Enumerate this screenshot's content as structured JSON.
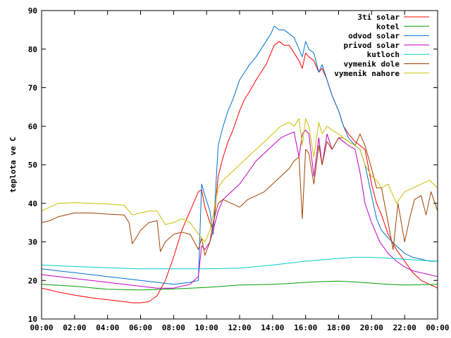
{
  "chart_data": {
    "type": "line",
    "ylabel": "teplota ve C",
    "xlabel": "",
    "title": "",
    "ylim": [
      10,
      90
    ],
    "xlim": [
      0,
      24
    ],
    "yticks": [
      10,
      20,
      30,
      40,
      50,
      60,
      70,
      80,
      90
    ],
    "xticks": [
      "00:00",
      "02:00",
      "04:00",
      "06:00",
      "08:00",
      "10:00",
      "12:00",
      "14:00",
      "16:00",
      "18:00",
      "20:00",
      "22:00",
      "00:00"
    ],
    "grid": false,
    "legend_position": "top-right",
    "series": [
      {
        "name": "3ti solar",
        "color": "#ff0000",
        "x": [
          0,
          0.5,
          1,
          2,
          3,
          4,
          5,
          5.5,
          6,
          6.5,
          7,
          7.5,
          8,
          8.5,
          9,
          9.5,
          9.7,
          9.9,
          10.2,
          10.4,
          10.7,
          11,
          11.3,
          11.6,
          12,
          12.3,
          12.6,
          13,
          13.3,
          13.6,
          13.9,
          14.1,
          14.4,
          14.7,
          15,
          15.3,
          15.6,
          15.8,
          16,
          16.2,
          16.5,
          16.8,
          17,
          17.3,
          17.6,
          18,
          18.3,
          18.6,
          19,
          19.3,
          19.6,
          20,
          20.3,
          20.6,
          21,
          21.5,
          22,
          22.5,
          23,
          23.5,
          24
        ],
        "y": [
          18,
          17.5,
          17,
          16.2,
          15.5,
          15,
          14.5,
          14.2,
          14.2,
          14.5,
          16,
          20,
          26,
          33,
          38,
          43,
          43.5,
          39,
          35,
          33,
          47,
          52,
          56,
          59,
          64,
          67,
          69,
          72,
          74,
          76,
          79,
          81,
          82,
          81,
          81,
          79,
          77,
          75,
          79,
          78,
          77,
          74,
          75,
          72,
          68,
          64,
          60,
          58,
          56,
          55,
          54,
          45,
          40,
          37,
          32,
          28,
          25,
          22,
          20,
          19,
          18
        ]
      },
      {
        "name": "kotel",
        "color": "#00a000",
        "x": [
          0,
          2,
          4,
          6,
          8,
          9,
          10,
          11,
          12,
          13,
          14,
          15,
          16,
          17,
          18,
          19,
          20,
          21,
          22,
          23,
          24
        ],
        "y": [
          19,
          18.5,
          17.7,
          17.5,
          17.8,
          18,
          18.2,
          18.5,
          18.8,
          18.9,
          19,
          19.2,
          19.5,
          19.7,
          19.8,
          19.6,
          19.3,
          19,
          18.8,
          18.9,
          19
        ]
      },
      {
        "name": "odvod solar",
        "color": "#0070cc",
        "x": [
          0,
          1,
          2,
          3,
          4,
          5,
          6,
          7,
          8,
          9,
          9.5,
          9.7,
          9.9,
          10.2,
          10.4,
          10.7,
          11,
          11.3,
          11.6,
          12,
          12.3,
          12.6,
          13,
          13.3,
          13.6,
          13.9,
          14.1,
          14.4,
          14.7,
          15,
          15.3,
          15.6,
          15.8,
          16,
          16.2,
          16.5,
          16.8,
          17,
          17.3,
          17.6,
          18,
          18.3,
          18.6,
          19,
          19.3,
          19.6,
          20,
          20.3,
          20.6,
          21,
          21.5,
          22,
          22.5,
          23,
          23.5,
          24
        ],
        "y": [
          23,
          22.5,
          22,
          21.5,
          21,
          20.5,
          20,
          19.5,
          19,
          19.5,
          20,
          45,
          42,
          38,
          32,
          55,
          60,
          64,
          67,
          72,
          74,
          76,
          78,
          80,
          82,
          84,
          86,
          85,
          85,
          84,
          83,
          80,
          78,
          82,
          80,
          79,
          74,
          76,
          72,
          68,
          64,
          60,
          57,
          55,
          54,
          50,
          42,
          36,
          33,
          31,
          29,
          27,
          26,
          25.5,
          25,
          25
        ]
      },
      {
        "name": "privod solar",
        "color": "#c000c0",
        "x": [
          0,
          1,
          2,
          3,
          4,
          5,
          6,
          7,
          8,
          9,
          9.5,
          9.7,
          9.9,
          10.2,
          10.4,
          10.7,
          11,
          11.5,
          12,
          12.5,
          13,
          13.5,
          14,
          14.5,
          15,
          15.3,
          15.6,
          15.8,
          16,
          16.2,
          16.5,
          16.8,
          17,
          17.3,
          17.6,
          18,
          18.3,
          18.6,
          19,
          19.3,
          19.6,
          20,
          20.5,
          21,
          21.5,
          22,
          22.5,
          23,
          23.5,
          24
        ],
        "y": [
          21.5,
          21,
          20.5,
          20,
          19.5,
          19,
          18.5,
          18,
          18,
          19,
          21,
          29,
          28,
          30,
          33,
          38,
          41,
          43,
          45,
          48,
          51,
          53,
          55,
          57,
          58,
          58.5,
          52,
          58,
          59,
          58,
          47,
          57,
          50,
          58,
          54,
          57,
          56,
          55,
          54,
          48,
          40,
          35,
          30,
          27,
          25,
          23.5,
          22.5,
          22,
          21.5,
          21
        ]
      },
      {
        "name": "kutloch",
        "color": "#00cccc",
        "x": [
          0,
          2,
          4,
          6,
          8,
          10,
          12,
          14,
          16,
          18,
          19,
          20,
          21,
          22,
          23,
          24
        ],
        "y": [
          24,
          23.6,
          23.3,
          23,
          23,
          23,
          23.2,
          24,
          25,
          25.7,
          26,
          26,
          25.8,
          25.5,
          25.2,
          25
        ]
      },
      {
        "name": "vymenik dole",
        "color": "#a04000",
        "x": [
          0,
          0.5,
          1,
          2,
          3,
          4,
          5,
          5.3,
          5.5,
          6,
          6.5,
          7,
          7.2,
          7.5,
          8,
          8.5,
          9,
          9.5,
          9.7,
          9.9,
          10.2,
          10.4,
          10.7,
          11,
          11.5,
          12,
          12.5,
          13,
          13.5,
          14,
          14.5,
          15,
          15.3,
          15.6,
          15.8,
          16,
          16.2,
          16.5,
          16.8,
          17,
          17.3,
          17.6,
          18,
          18.3,
          18.6,
          19,
          19.3,
          19.6,
          20,
          20.3,
          20.6,
          21,
          21.3,
          21.6,
          22,
          22.3,
          22.6,
          23,
          23.3,
          23.6,
          24
        ],
        "y": [
          35,
          35.5,
          36.5,
          37.5,
          37.5,
          37.2,
          37,
          35,
          29.5,
          33,
          35,
          35.5,
          27.5,
          30,
          32,
          32.5,
          32,
          28,
          31,
          26.5,
          30,
          35,
          40,
          41,
          40,
          39,
          41,
          42,
          43,
          45,
          47,
          49,
          51,
          52,
          36,
          54,
          53,
          45,
          55,
          50,
          56,
          54,
          57,
          57,
          56,
          55,
          58,
          55,
          49,
          44,
          44,
          35,
          28,
          40,
          30,
          36,
          41,
          42,
          37,
          43,
          38
        ]
      },
      {
        "name": "vymenik nahore",
        "color": "#c8c000",
        "x": [
          0,
          0.5,
          1,
          2,
          3,
          4,
          5,
          5.5,
          6,
          6.5,
          7,
          7.5,
          8,
          8.5,
          9,
          9.5,
          9.7,
          9.9,
          10.2,
          10.4,
          10.7,
          11,
          11.5,
          12,
          12.5,
          13,
          13.5,
          14,
          14.5,
          15,
          15.3,
          15.6,
          15.8,
          16,
          16.2,
          16.5,
          16.8,
          17,
          17.3,
          17.6,
          18,
          18.3,
          18.6,
          19,
          19.3,
          19.6,
          20,
          20.3,
          20.6,
          21,
          21.5,
          22,
          22.5,
          23,
          23.5,
          24
        ],
        "y": [
          38,
          39,
          40,
          40.2,
          40,
          39.8,
          39.5,
          37,
          37.5,
          38,
          38,
          34.5,
          35,
          36,
          35,
          32,
          31,
          30,
          33,
          37,
          44,
          46,
          48,
          50,
          52,
          54,
          56,
          58,
          60,
          61,
          60,
          62,
          55,
          62,
          60,
          52,
          61,
          58,
          60,
          59,
          58,
          57,
          56,
          55,
          54,
          50,
          47,
          46,
          44,
          45,
          40,
          43,
          44,
          45,
          46,
          44
        ]
      }
    ]
  }
}
